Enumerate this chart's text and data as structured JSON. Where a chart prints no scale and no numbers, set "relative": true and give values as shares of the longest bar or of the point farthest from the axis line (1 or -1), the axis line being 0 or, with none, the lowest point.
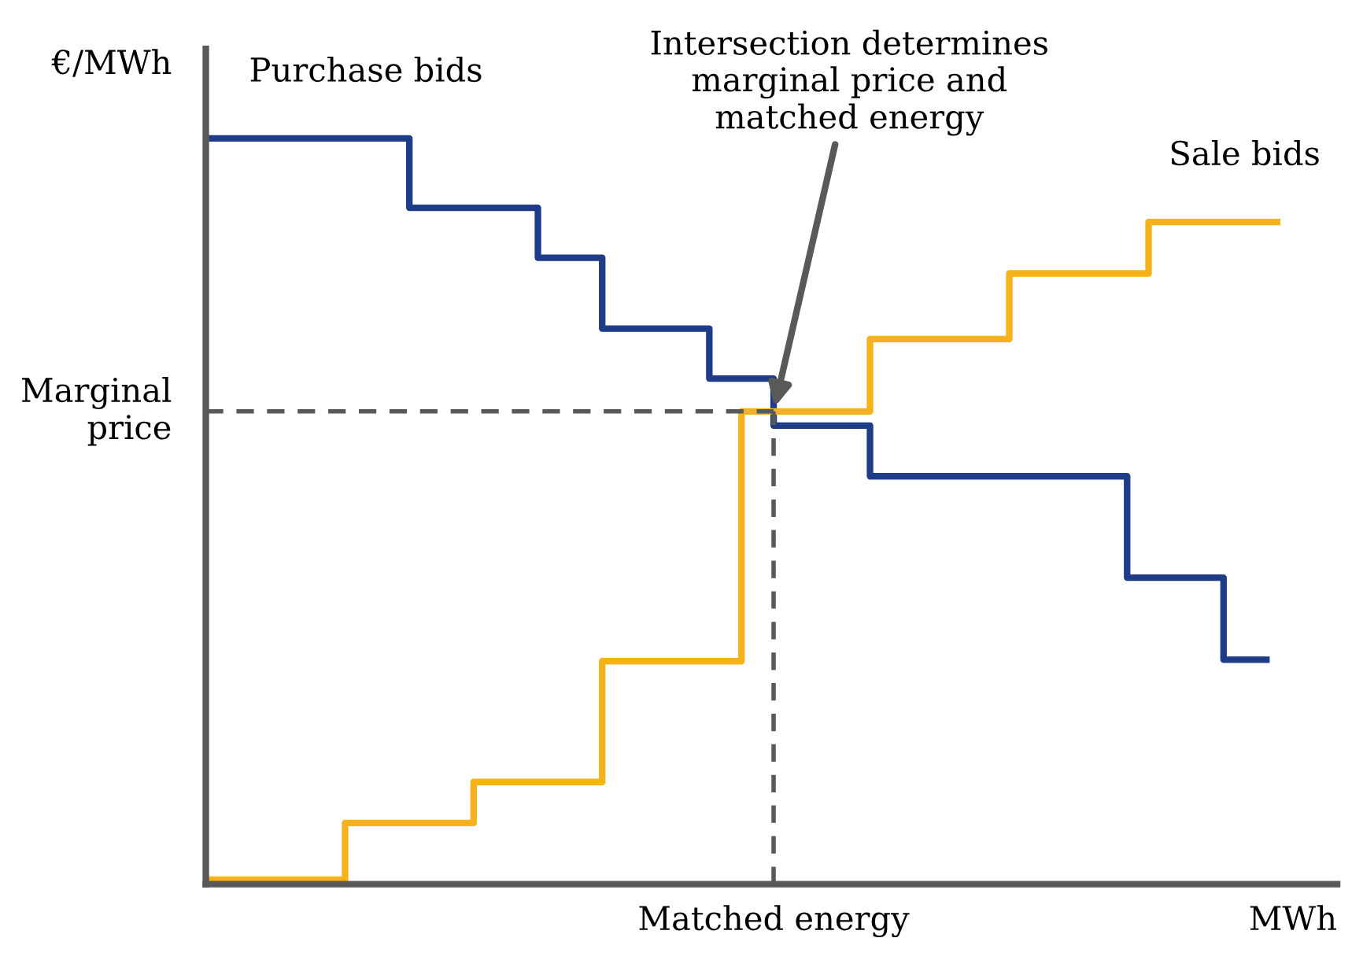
{
  "chart_data": {
    "type": "step",
    "relative": true,
    "xlabel": "MWh",
    "ylabel": "€/MWh",
    "categories": [
      null,
      null,
      null,
      null,
      null,
      null,
      null,
      null,
      null,
      null,
      null,
      null,
      null,
      null,
      null,
      null,
      null,
      null,
      null,
      null,
      null,
      null,
      null,
      null,
      null,
      null,
      null,
      null,
      null,
      null,
      null,
      null,
      null,
      null,
      null,
      null,
      null,
      null,
      null,
      null,
      null,
      null,
      null,
      null,
      null,
      null,
      null,
      null,
      null,
      null,
      null,
      null,
      null,
      null,
      null,
      null,
      null,
      null,
      null,
      null,
      null,
      null,
      null,
      null,
      null,
      null,
      null,
      null,
      null,
      null,
      null,
      null,
      null,
      null,
      null,
      null,
      null,
      null,
      null,
      null,
      null,
      null,
      null,
      null,
      null,
      null,
      null,
      null,
      null,
      null,
      null,
      null,
      null,
      null,
      null,
      null,
      null,
      null,
      null,
      null,
      null
    ],
    "series": [
      {
        "name": "Purchase bids",
        "color": "#1f3c88",
        "values": [
          1.0,
          1.0,
          1.0,
          1.0,
          1.0,
          1.0,
          1.0,
          1.0,
          1.0,
          1.0,
          1.0,
          1.0,
          1.0,
          1.0,
          1.0,
          1.0,
          1.0,
          1.0,
          1.0,
          0.907,
          0.907,
          0.907,
          0.907,
          0.907,
          0.907,
          0.907,
          0.907,
          0.907,
          0.907,
          0.907,
          0.907,
          0.84,
          0.84,
          0.84,
          0.84,
          0.84,
          0.84,
          0.745,
          0.745,
          0.745,
          0.745,
          0.745,
          0.745,
          0.745,
          0.745,
          0.745,
          0.745,
          0.678,
          0.678,
          0.678,
          0.678,
          0.678,
          0.678,
          0.615,
          0.615,
          0.615,
          0.615,
          0.615,
          0.615,
          0.615,
          0.615,
          0.615,
          0.547,
          0.547,
          0.547,
          0.547,
          0.547,
          0.547,
          0.547,
          0.547,
          0.547,
          0.547,
          0.547,
          0.547,
          0.547,
          0.547,
          0.547,
          0.547,
          0.547,
          0.547,
          0.547,
          0.547,
          0.547,
          0.547,
          0.547,
          0.547,
          0.411,
          0.411,
          0.411,
          0.411,
          0.411,
          0.411,
          0.411,
          0.411,
          0.411,
          0.301,
          0.301,
          0.301,
          0.301,
          0.301,
          null
        ]
      },
      {
        "name": "Sale bids",
        "color": "#f5b21a",
        "values": [
          0.006,
          0.006,
          0.006,
          0.006,
          0.006,
          0.006,
          0.006,
          0.006,
          0.006,
          0.006,
          0.006,
          0.006,
          0.006,
          0.082,
          0.082,
          0.082,
          0.082,
          0.082,
          0.082,
          0.082,
          0.082,
          0.082,
          0.082,
          0.082,
          0.082,
          0.137,
          0.137,
          0.137,
          0.137,
          0.137,
          0.137,
          0.137,
          0.137,
          0.137,
          0.137,
          0.137,
          0.137,
          0.299,
          0.299,
          0.299,
          0.299,
          0.299,
          0.299,
          0.299,
          0.299,
          0.299,
          0.299,
          0.299,
          0.299,
          0.299,
          0.634,
          0.634,
          0.634,
          0.634,
          0.634,
          0.634,
          0.634,
          0.634,
          0.634,
          0.634,
          0.634,
          0.634,
          0.731,
          0.731,
          0.731,
          0.731,
          0.731,
          0.731,
          0.731,
          0.731,
          0.731,
          0.731,
          0.731,
          0.731,
          0.731,
          0.819,
          0.819,
          0.819,
          0.819,
          0.819,
          0.819,
          0.819,
          0.819,
          0.819,
          0.819,
          0.819,
          0.819,
          0.819,
          0.888,
          0.888,
          0.888,
          0.888,
          0.888,
          0.888,
          0.888,
          0.888,
          0.888,
          0.888,
          0.888,
          0.888,
          0.888
        ]
      }
    ],
    "ref_lines": [
      {
        "axis": "y",
        "value": 0.634,
        "label": "Marginal\nprice",
        "color": "#595959",
        "line_style": "dashed"
      }
    ],
    "annotations": [
      "Intersection determines\nmarginal price and\nmatched energy",
      "Matched energy"
    ]
  }
}
